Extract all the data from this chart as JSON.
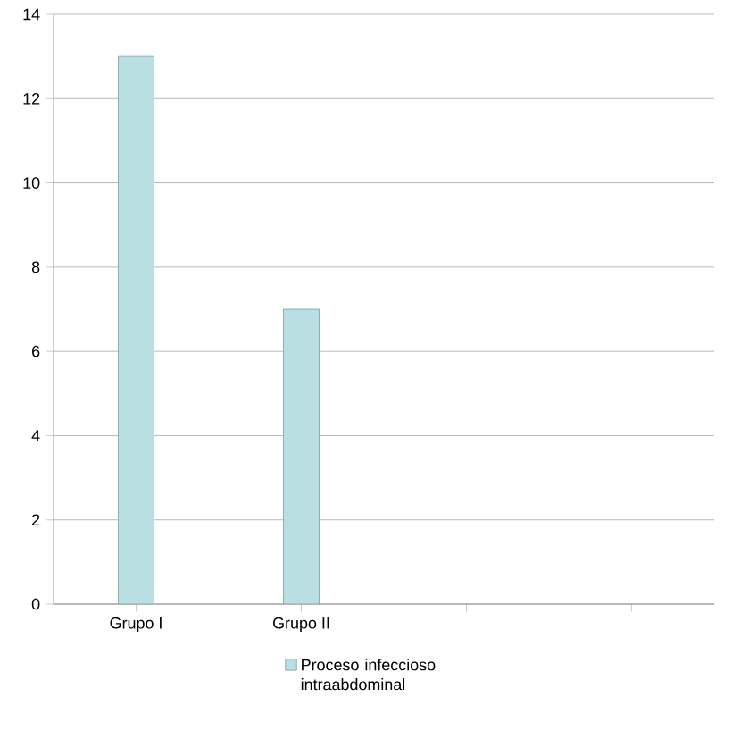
{
  "chart_data": {
    "type": "bar",
    "categories": [
      "Grupo I",
      "Grupo II",
      null,
      null
    ],
    "series": [
      {
        "name": "Proceso infeccioso intraabdominal",
        "color": "#b9dfe3",
        "values": [
          13,
          7,
          null,
          null
        ]
      }
    ],
    "ylim": [
      0,
      14
    ],
    "yticks": [
      0,
      2,
      4,
      6,
      8,
      10,
      12,
      14
    ],
    "grid": "y",
    "legend": "bottom"
  }
}
